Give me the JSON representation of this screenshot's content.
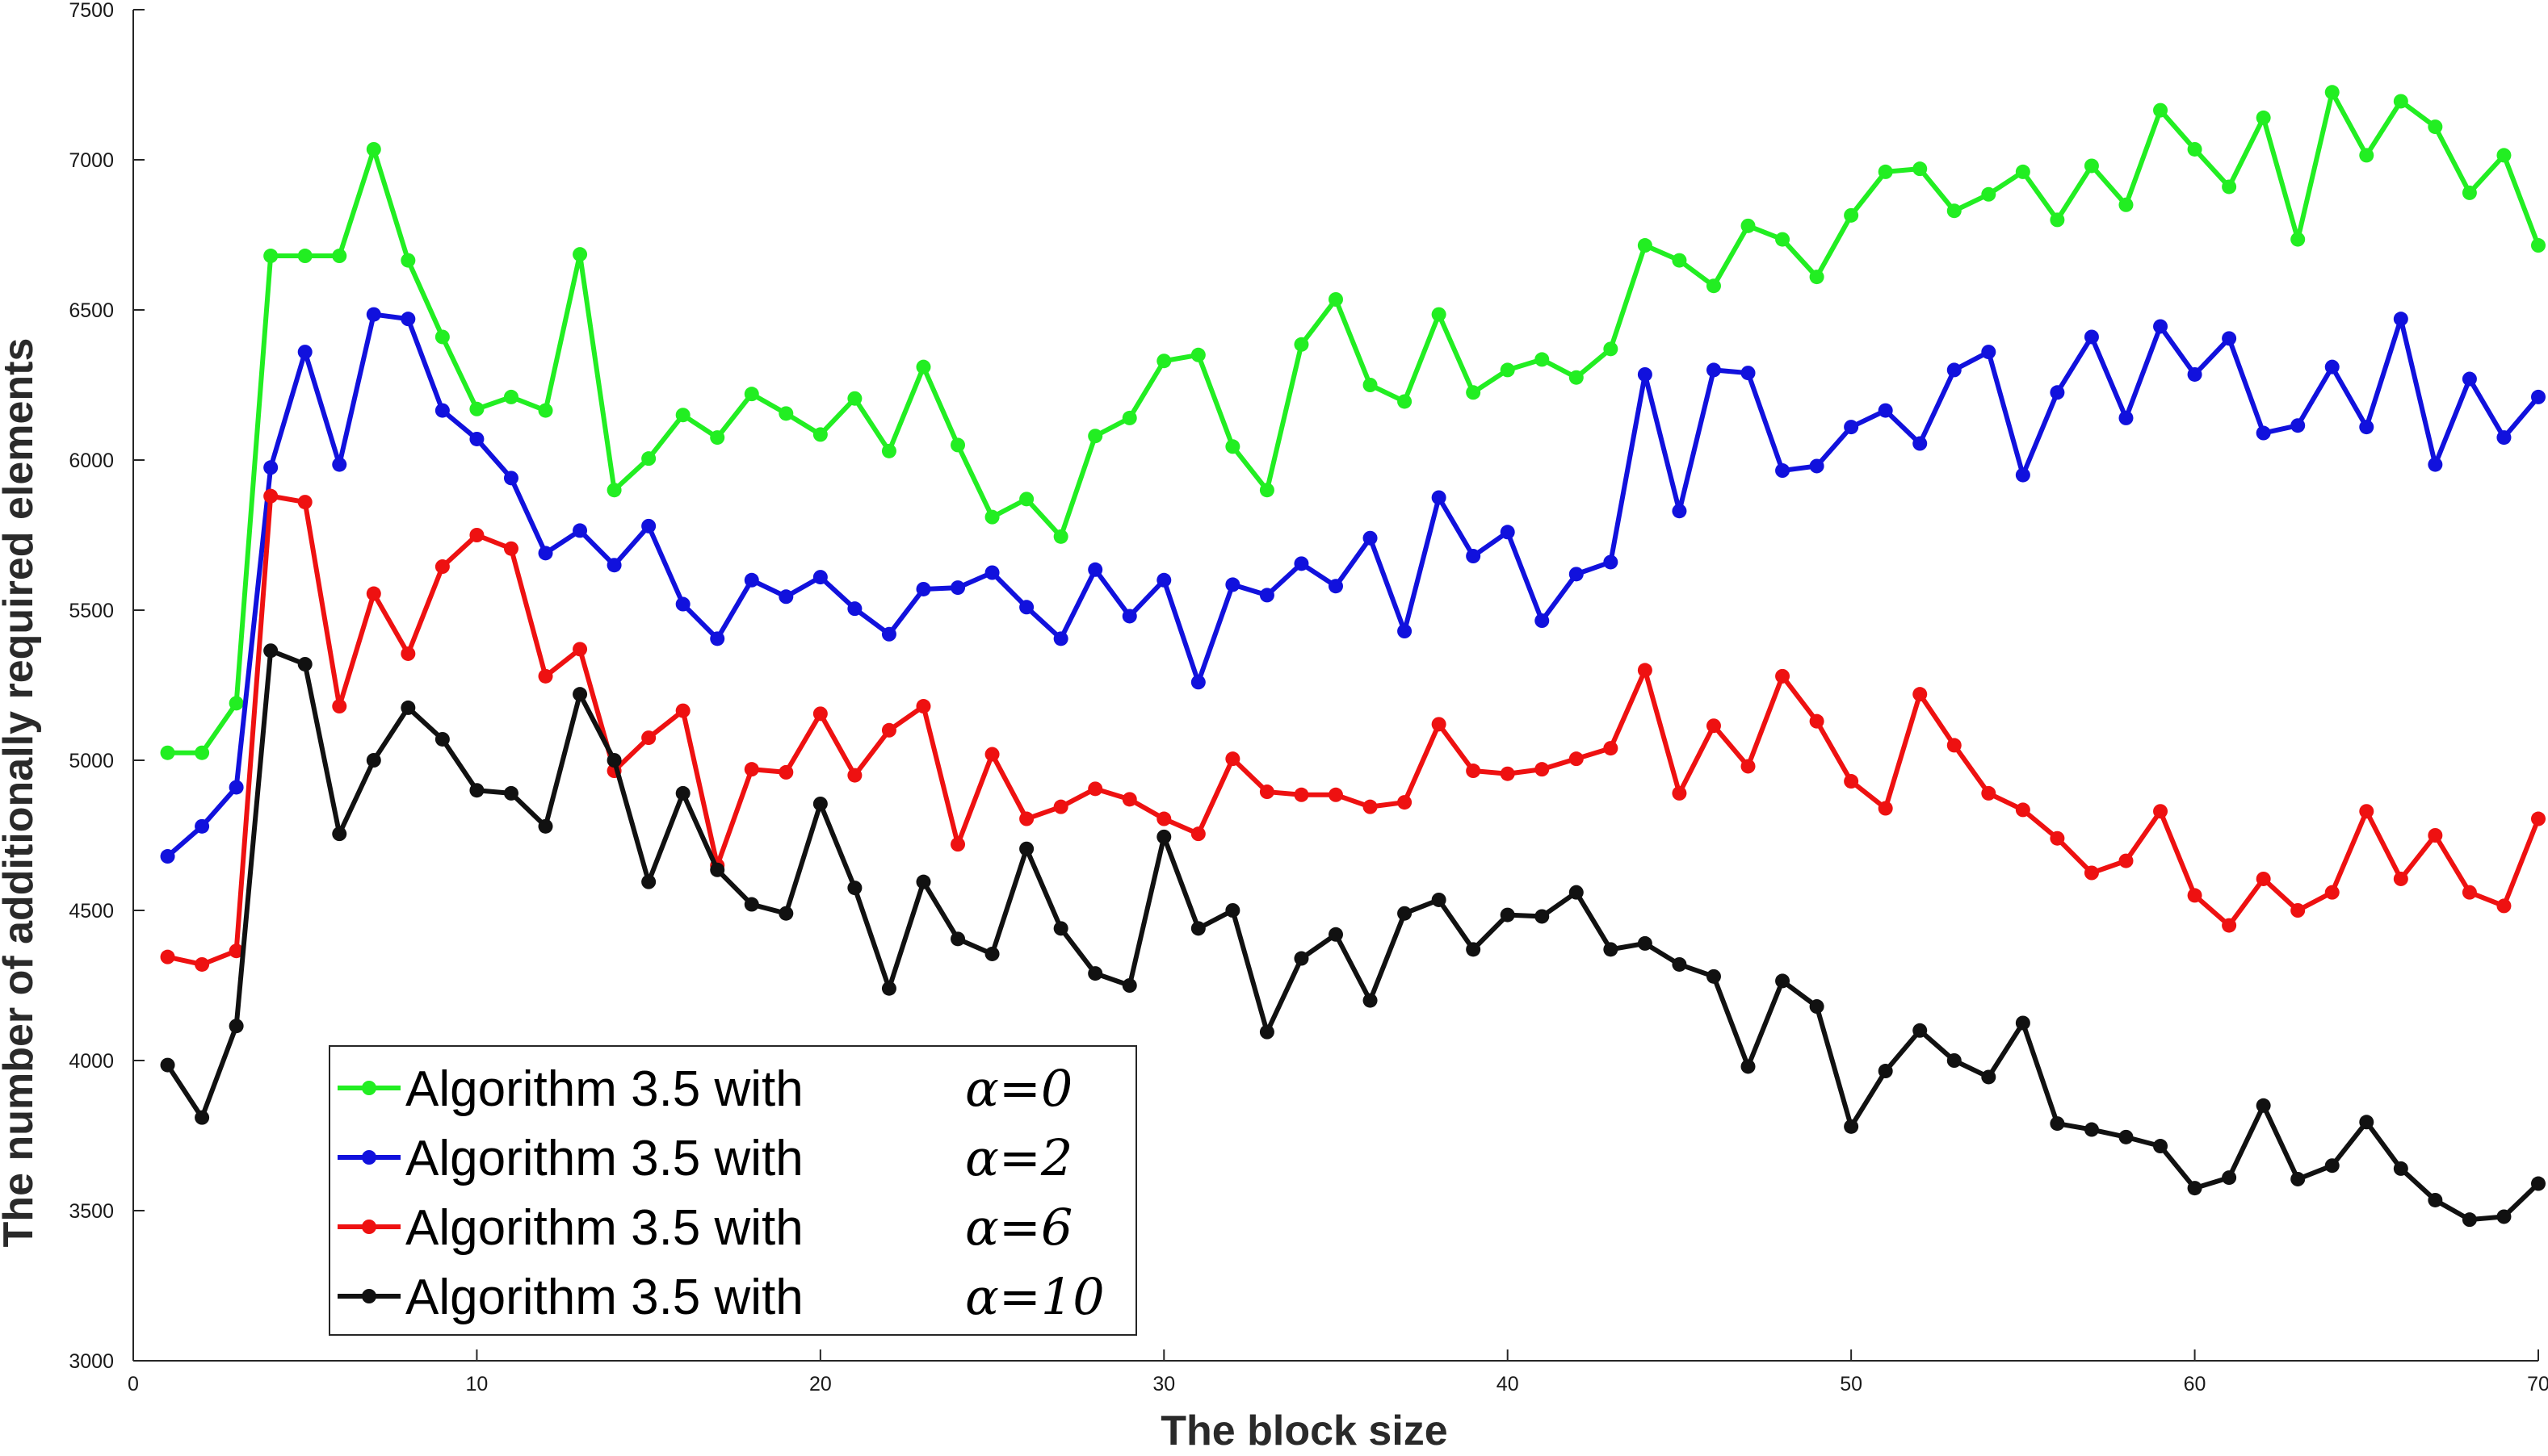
{
  "chart_data": {
    "type": "line",
    "title": "",
    "xlabel": "The block size",
    "ylabel": "The number of additionally required elements",
    "xlim": [
      0,
      70
    ],
    "ylim": [
      3000,
      7500
    ],
    "xticks": [
      0,
      10,
      20,
      30,
      40,
      50,
      60,
      70
    ],
    "yticks": [
      3000,
      3500,
      4000,
      4500,
      5000,
      5500,
      6000,
      6500,
      7000,
      7500
    ],
    "grid": false,
    "legend_position": "lower-left",
    "x": [
      1,
      2,
      3,
      4,
      5,
      6,
      7,
      8,
      9,
      10,
      11,
      12,
      13,
      14,
      15,
      16,
      17,
      18,
      19,
      20,
      21,
      22,
      23,
      24,
      25,
      26,
      27,
      28,
      29,
      30,
      31,
      32,
      33,
      34,
      35,
      36,
      37,
      38,
      39,
      40,
      41,
      42,
      43,
      44,
      45,
      46,
      47,
      48,
      49,
      50,
      51,
      52,
      53,
      54,
      55,
      56,
      57,
      58,
      59,
      60,
      61,
      62,
      63,
      64,
      65,
      66,
      67,
      68,
      69,
      70
    ],
    "series": [
      {
        "name": "Algorithm 3.5 with",
        "alpha_label": "α=0",
        "color": "#22ee22",
        "values": [
          5025,
          5025,
          5190,
          6680,
          6680,
          6680,
          7035,
          6665,
          6410,
          6170,
          6210,
          6165,
          6685,
          5900,
          6005,
          6150,
          6075,
          6220,
          6155,
          6085,
          6205,
          6030,
          6310,
          6050,
          5810,
          5870,
          5745,
          6080,
          6140,
          6330,
          6350,
          6045,
          5900,
          6385,
          6535,
          6250,
          6195,
          6485,
          6225,
          6300,
          6335,
          6275,
          6370,
          6715,
          6665,
          6580,
          6780,
          6735,
          6610,
          6815,
          6960,
          6970,
          6830,
          6885,
          6960,
          6800,
          6980,
          6850,
          7165,
          7035,
          6910,
          7140,
          6735,
          7225,
          7015,
          7195,
          7110,
          6890,
          7015,
          6715
        ]
      },
      {
        "name": "Algorithm 3.5 with",
        "alpha_label": "α=2",
        "color": "#1111dd",
        "values": [
          4680,
          4780,
          4910,
          5975,
          6360,
          5985,
          6485,
          6470,
          6165,
          6070,
          5940,
          5690,
          5765,
          5650,
          5780,
          5520,
          5405,
          5600,
          5545,
          5610,
          5505,
          5420,
          5570,
          5575,
          5625,
          5510,
          5405,
          5635,
          5480,
          5600,
          5260,
          5585,
          5550,
          5655,
          5580,
          5740,
          5430,
          5875,
          5680,
          5760,
          5465,
          5620,
          5660,
          6285,
          5830,
          6300,
          6290,
          5965,
          5980,
          6110,
          6165,
          6055,
          6300,
          6360,
          5950,
          6225,
          6410,
          6140,
          6445,
          6285,
          6405,
          6090,
          6115,
          6310,
          6110,
          6470,
          5985,
          6270,
          6075,
          6210
        ]
      },
      {
        "name": "Algorithm 3.5 with",
        "alpha_label": "α=6",
        "color": "#ee1111",
        "values": [
          4345,
          4320,
          4365,
          5880,
          5860,
          5180,
          5555,
          5355,
          5645,
          5750,
          5705,
          5280,
          5370,
          4965,
          5075,
          5165,
          4650,
          4970,
          4960,
          5155,
          4950,
          5100,
          5180,
          4720,
          5020,
          4805,
          4845,
          4905,
          4870,
          4805,
          4755,
          5005,
          4895,
          4885,
          4885,
          4845,
          4860,
          5120,
          4965,
          4955,
          4970,
          5005,
          5040,
          5300,
          4890,
          5115,
          4980,
          5280,
          5130,
          4930,
          4840,
          5220,
          5050,
          4890,
          4835,
          4740,
          4625,
          4665,
          4830,
          4550,
          4450,
          4605,
          4500,
          4560,
          4830,
          4605,
          4750,
          4560,
          4515,
          4805
        ]
      },
      {
        "name": "Algorithm 3.5 with",
        "alpha_label": "α=10",
        "color": "#111111",
        "values": [
          3985,
          3810,
          4115,
          5365,
          5320,
          4755,
          5000,
          5175,
          5070,
          4900,
          4890,
          4780,
          5220,
          5000,
          4595,
          4890,
          4635,
          4520,
          4490,
          4855,
          4575,
          4240,
          4595,
          4405,
          4355,
          4705,
          4440,
          4290,
          4250,
          4745,
          4440,
          4500,
          4095,
          4340,
          4420,
          4200,
          4490,
          4535,
          4370,
          4485,
          4480,
          4560,
          4370,
          4390,
          4320,
          4280,
          3980,
          4265,
          4180,
          3780,
          3965,
          4100,
          4000,
          3945,
          4125,
          3790,
          3770,
          3745,
          3715,
          3575,
          3610,
          3850,
          3605,
          3650,
          3795,
          3640,
          3535,
          3470,
          3480,
          3590
        ]
      }
    ]
  }
}
